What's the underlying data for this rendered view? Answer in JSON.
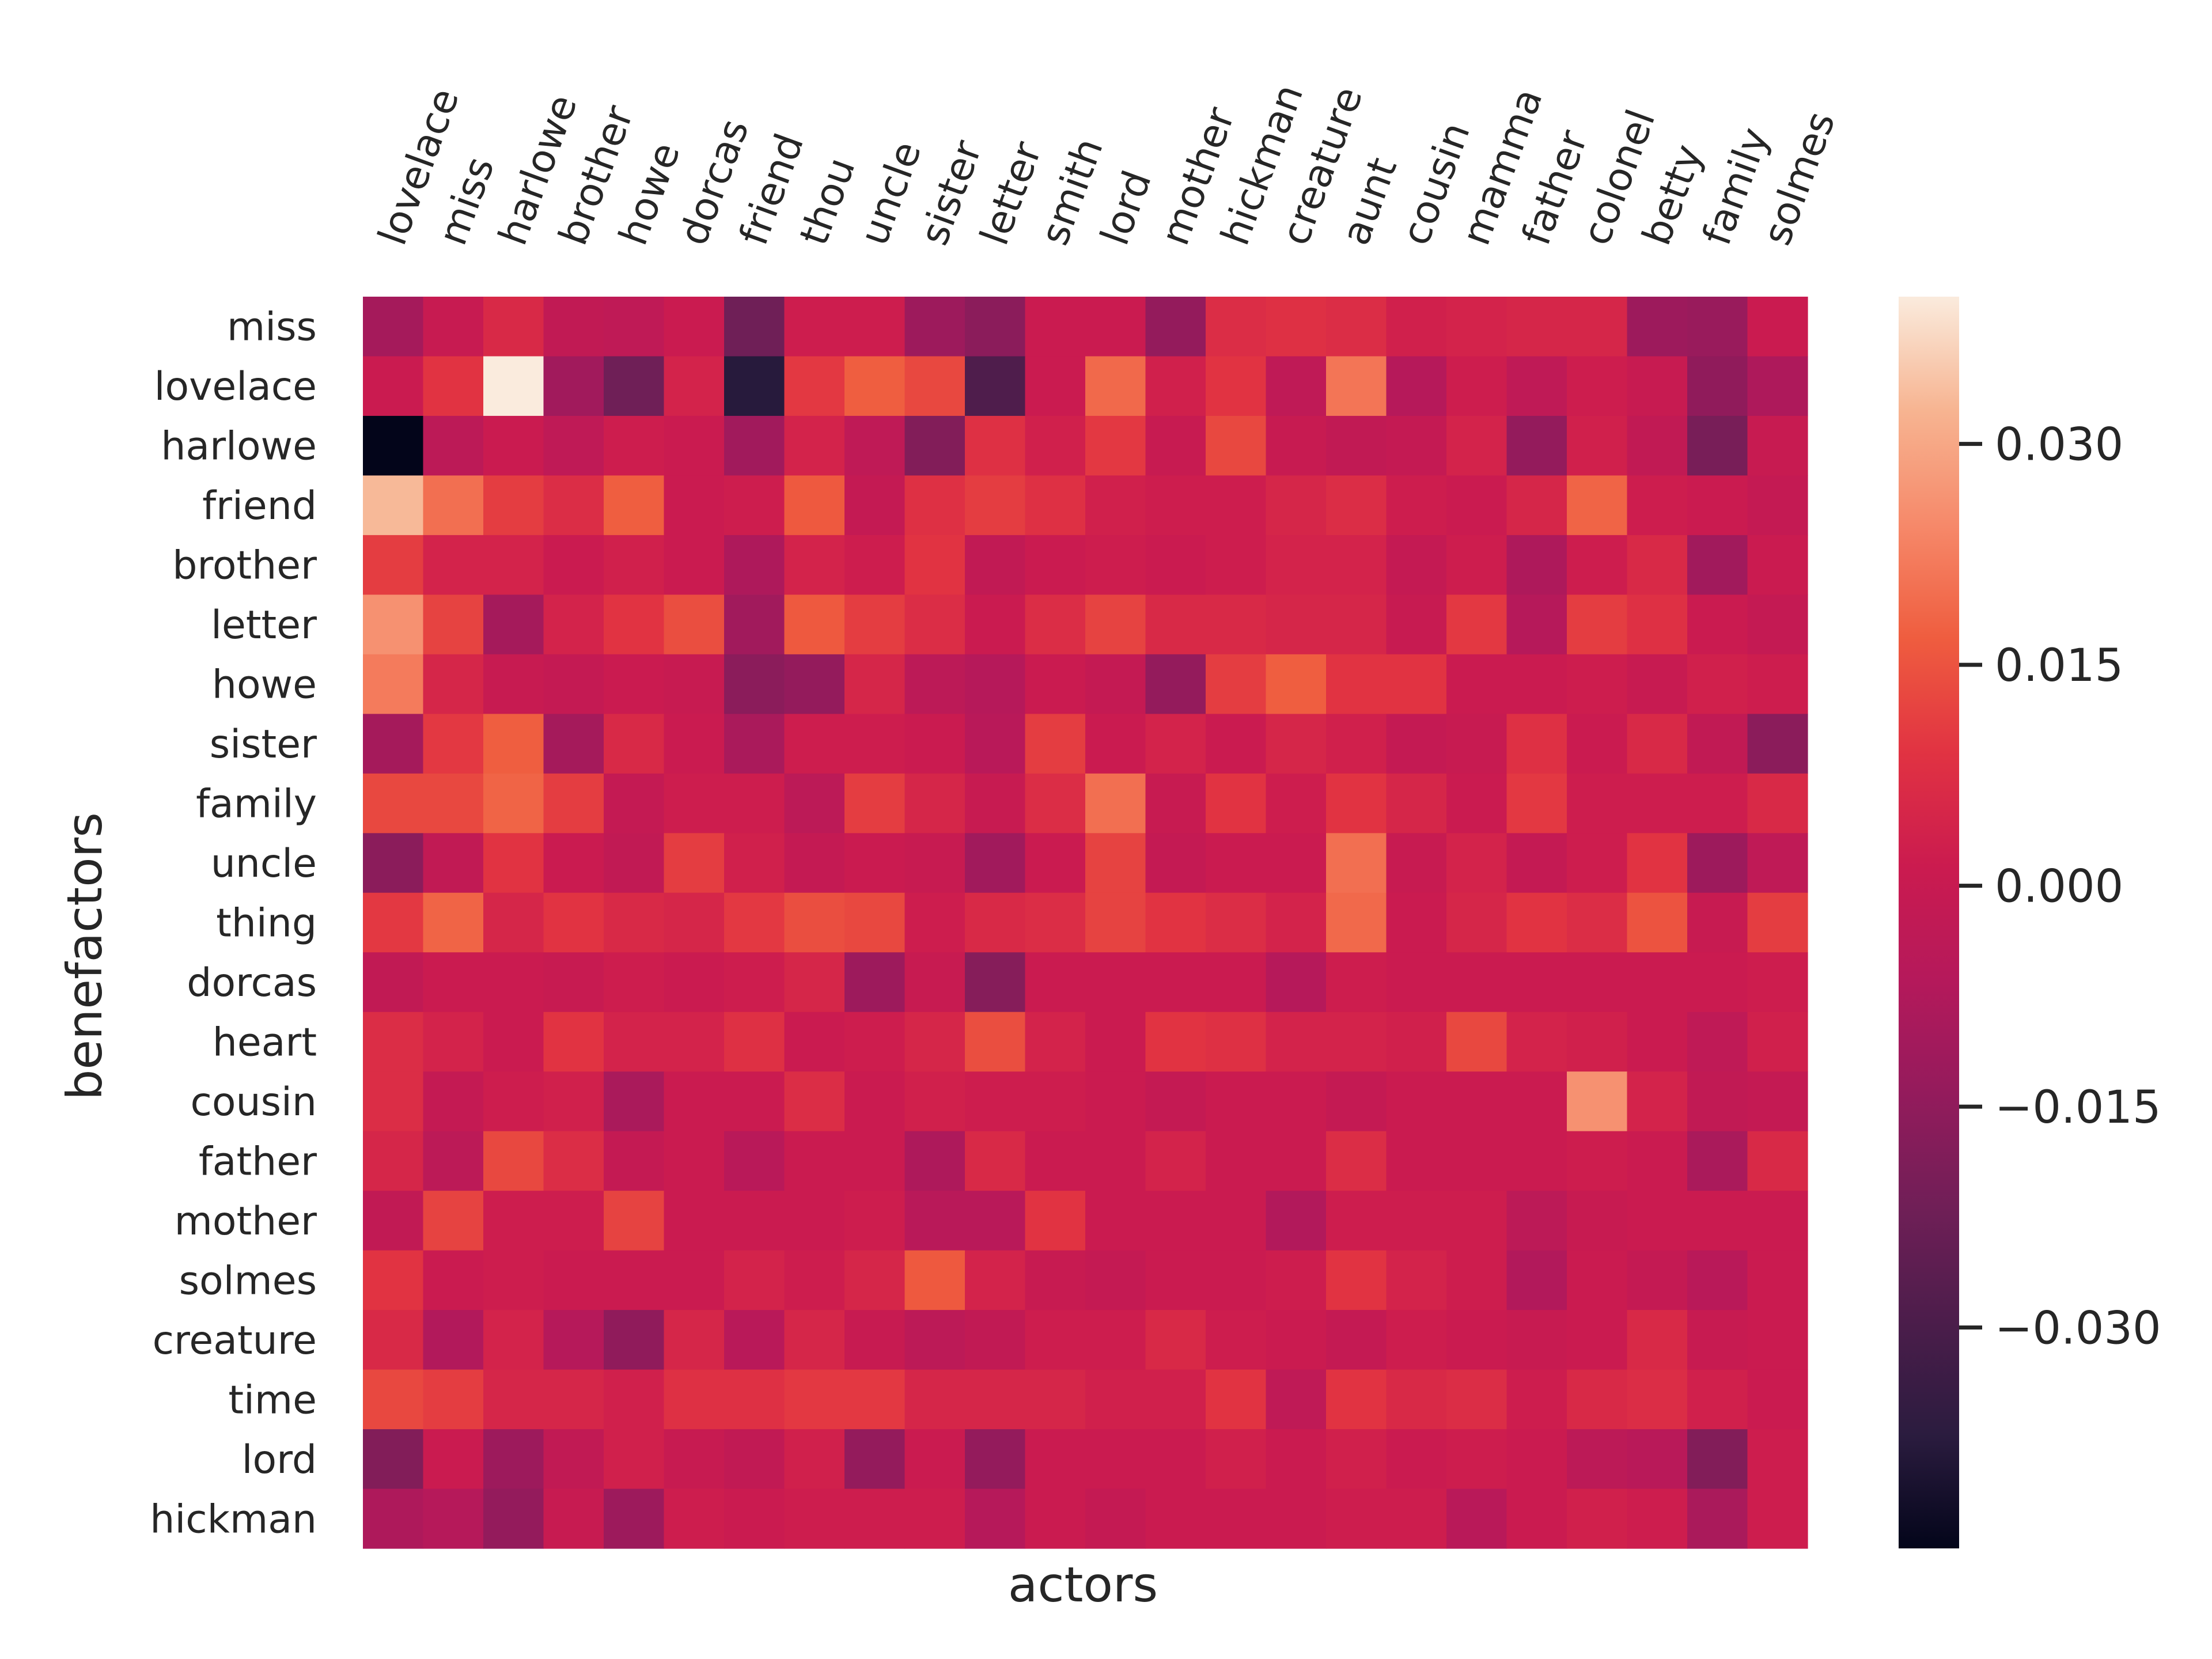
{
  "chart_data": {
    "type": "heatmap",
    "title": "",
    "xlabel": "actors",
    "ylabel": "benefactors",
    "x_categories": [
      "lovelace",
      "miss",
      "harlowe",
      "brother",
      "howe",
      "dorcas",
      "friend",
      "thou",
      "uncle",
      "sister",
      "letter",
      "smith",
      "lord",
      "mother",
      "hickman",
      "creature",
      "aunt",
      "cousin",
      "mamma",
      "father",
      "colonel",
      "betty",
      "family",
      "solmes"
    ],
    "y_categories": [
      "miss",
      "lovelace",
      "harlowe",
      "friend",
      "brother",
      "letter",
      "howe",
      "sister",
      "family",
      "uncle",
      "thing",
      "dorcas",
      "heart",
      "cousin",
      "father",
      "mother",
      "solmes",
      "creature",
      "time",
      "lord",
      "hickman"
    ],
    "values": [
      [
        -0.01,
        0.0,
        0.006,
        -0.002,
        -0.003,
        0.001,
        -0.022,
        0.002,
        0.002,
        -0.012,
        -0.016,
        0.001,
        0.001,
        -0.014,
        0.007,
        0.008,
        0.007,
        0.003,
        0.004,
        0.005,
        0.005,
        -0.012,
        -0.013,
        0.001
      ],
      [
        0.001,
        0.009,
        0.04,
        -0.011,
        -0.022,
        0.004,
        -0.038,
        0.01,
        0.017,
        0.013,
        -0.029,
        0.001,
        0.019,
        0.003,
        0.009,
        -0.003,
        0.021,
        -0.006,
        0.002,
        -0.003,
        0.002,
        0.0,
        -0.015,
        -0.008
      ],
      [
        -0.045,
        -0.004,
        0.001,
        -0.003,
        0.002,
        0.001,
        -0.011,
        0.004,
        -0.003,
        -0.018,
        0.008,
        0.003,
        0.01,
        0.0,
        0.013,
        0.0,
        -0.002,
        -0.001,
        0.004,
        -0.014,
        0.003,
        -0.002,
        -0.02,
        0.0
      ],
      [
        0.033,
        0.02,
        0.011,
        0.007,
        0.017,
        0.001,
        0.002,
        0.016,
        -0.001,
        0.008,
        0.011,
        0.008,
        0.003,
        0.002,
        0.002,
        0.005,
        0.007,
        0.002,
        0.001,
        0.005,
        0.018,
        0.002,
        0.001,
        -0.001
      ],
      [
        0.011,
        0.004,
        0.004,
        0.001,
        0.003,
        0.001,
        -0.008,
        0.004,
        0.002,
        0.009,
        -0.002,
        0.001,
        0.002,
        0.001,
        0.002,
        0.004,
        0.004,
        -0.001,
        0.002,
        -0.008,
        0.002,
        0.006,
        -0.011,
        0.001
      ],
      [
        0.026,
        0.012,
        -0.01,
        0.004,
        0.009,
        0.014,
        -0.011,
        0.016,
        0.011,
        0.007,
        0.001,
        0.007,
        0.012,
        0.006,
        0.006,
        0.005,
        0.005,
        0.0,
        0.01,
        -0.006,
        0.011,
        0.008,
        0.001,
        -0.001
      ],
      [
        0.022,
        0.005,
        0.0,
        -0.001,
        0.001,
        0.0,
        -0.016,
        -0.014,
        0.005,
        -0.004,
        -0.006,
        0.001,
        -0.001,
        -0.014,
        0.011,
        0.017,
        0.009,
        0.009,
        0.001,
        0.001,
        0.002,
        0.0,
        0.003,
        0.002
      ],
      [
        -0.01,
        0.01,
        0.017,
        -0.01,
        0.006,
        0.001,
        -0.009,
        0.002,
        0.002,
        0.001,
        -0.005,
        0.011,
        0.001,
        0.004,
        0.001,
        0.005,
        0.003,
        -0.001,
        0.0,
        0.008,
        0.001,
        0.006,
        -0.002,
        -0.016
      ],
      [
        0.013,
        0.013,
        0.018,
        0.011,
        -0.001,
        0.002,
        0.002,
        -0.004,
        0.011,
        0.005,
        0.0,
        0.007,
        0.02,
        0.0,
        0.009,
        0.002,
        0.009,
        0.005,
        0.001,
        0.01,
        0.002,
        0.002,
        0.002,
        0.006
      ],
      [
        -0.016,
        -0.002,
        0.009,
        0.001,
        -0.002,
        0.011,
        0.003,
        -0.001,
        0.001,
        0.0,
        -0.011,
        0.001,
        0.012,
        -0.001,
        0.001,
        0.001,
        0.02,
        0.0,
        0.004,
        -0.001,
        0.002,
        0.009,
        -0.012,
        -0.003
      ],
      [
        0.01,
        0.018,
        0.005,
        0.009,
        0.006,
        0.005,
        0.01,
        0.014,
        0.013,
        0.002,
        0.006,
        0.007,
        0.012,
        0.009,
        0.007,
        0.004,
        0.019,
        0.001,
        0.005,
        0.009,
        0.007,
        0.015,
        0.0,
        0.011
      ],
      [
        -0.002,
        0.001,
        0.001,
        0.0,
        0.002,
        0.001,
        0.002,
        0.005,
        -0.012,
        0.0,
        -0.017,
        0.001,
        0.001,
        0.001,
        0.001,
        -0.006,
        0.002,
        0.001,
        0.001,
        0.001,
        0.001,
        0.001,
        0.001,
        0.002
      ],
      [
        0.007,
        0.004,
        0.001,
        0.009,
        0.004,
        0.004,
        0.008,
        0.001,
        0.002,
        0.005,
        0.014,
        0.004,
        0.001,
        0.009,
        0.008,
        0.004,
        0.004,
        0.003,
        0.013,
        0.004,
        0.003,
        0.001,
        -0.003,
        0.003
      ],
      [
        0.007,
        -0.001,
        0.002,
        0.003,
        -0.009,
        0.001,
        0.001,
        0.007,
        0.001,
        0.003,
        0.002,
        0.002,
        0.001,
        -0.001,
        0.001,
        0.001,
        -0.001,
        0.001,
        0.001,
        0.001,
        0.026,
        0.004,
        -0.002,
        -0.001
      ],
      [
        0.005,
        -0.004,
        0.013,
        0.007,
        -0.001,
        0.001,
        -0.005,
        0.001,
        0.001,
        -0.008,
        0.006,
        0.001,
        0.001,
        0.004,
        0.001,
        0.001,
        0.007,
        0.001,
        0.001,
        0.001,
        0.002,
        0.001,
        -0.009,
        0.006
      ],
      [
        -0.002,
        0.012,
        0.002,
        0.002,
        0.012,
        0.001,
        0.001,
        0.001,
        0.002,
        -0.005,
        -0.005,
        0.009,
        0.001,
        0.001,
        0.001,
        -0.007,
        0.002,
        0.002,
        0.002,
        -0.004,
        0.0,
        0.001,
        0.001,
        0.001
      ],
      [
        0.009,
        0.001,
        0.002,
        0.001,
        0.001,
        0.001,
        0.004,
        0.002,
        0.005,
        0.016,
        0.004,
        0.0,
        -0.001,
        0.001,
        0.001,
        0.002,
        0.009,
        0.004,
        0.002,
        -0.007,
        0.001,
        -0.001,
        -0.005,
        0.001
      ],
      [
        0.006,
        -0.007,
        0.004,
        -0.006,
        -0.015,
        0.005,
        -0.005,
        0.005,
        0.0,
        -0.004,
        -0.002,
        0.002,
        0.002,
        0.006,
        0.002,
        0.001,
        -0.001,
        0.002,
        0.001,
        0.0,
        0.001,
        0.006,
        0.0,
        0.001
      ],
      [
        0.013,
        0.011,
        0.005,
        0.005,
        0.003,
        0.008,
        0.008,
        0.01,
        0.01,
        0.005,
        0.005,
        0.005,
        0.003,
        0.003,
        0.009,
        -0.003,
        0.009,
        0.006,
        0.007,
        0.002,
        0.006,
        0.007,
        0.003,
        0.001
      ],
      [
        -0.018,
        0.001,
        -0.012,
        -0.002,
        0.003,
        0.0,
        -0.002,
        0.003,
        -0.014,
        0.001,
        -0.014,
        0.001,
        0.001,
        0.001,
        0.003,
        0.001,
        0.003,
        0.001,
        0.002,
        0.001,
        -0.004,
        -0.005,
        -0.018,
        0.002
      ],
      [
        -0.008,
        -0.006,
        -0.014,
        0.0,
        -0.012,
        0.002,
        0.001,
        0.002,
        0.002,
        0.002,
        -0.006,
        0.001,
        -0.001,
        0.001,
        0.001,
        0.001,
        0.002,
        0.002,
        -0.005,
        0.001,
        0.003,
        0.002,
        -0.009,
        0.002
      ]
    ],
    "vmin": -0.045,
    "vmax": 0.04,
    "colorbar_ticks": [
      0.03,
      0.015,
      0.0,
      -0.015,
      -0.03
    ],
    "colorbar_tick_labels": [
      "0.030",
      "0.015",
      "0.000",
      "−0.015",
      "−0.030"
    ],
    "colormap": [
      "#03051a",
      "#2b1c3f",
      "#4c1d4b",
      "#701f57",
      "#941b5c",
      "#b5195b",
      "#cb1b4f",
      "#e13342",
      "#ef5d3f",
      "#f6896a",
      "#f7b491",
      "#faebdd"
    ],
    "grid": false,
    "legend": "colorbar-right"
  }
}
